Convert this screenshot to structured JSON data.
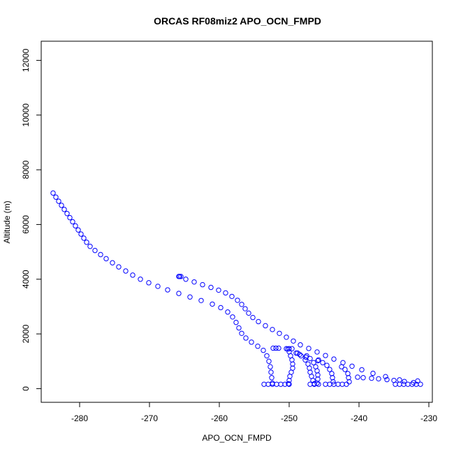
{
  "chart_data": {
    "type": "scatter",
    "title": "ORCAS RF08miz2 APO_OCN_FMPD",
    "xlabel": "APO_OCN_FMPD",
    "ylabel": "Altitude (m)",
    "xlim": [
      -285.5,
      -229.5
    ],
    "ylim": [
      -500,
      12700
    ],
    "xticks": [
      -280,
      -270,
      -260,
      -250,
      -240,
      -230
    ],
    "xtick_labels": [
      "-280",
      "-270",
      "-260",
      "-250",
      "-240",
      "-230"
    ],
    "yticks": [
      0,
      2000,
      4000,
      6000,
      8000,
      10000,
      12000
    ],
    "ytick_labels": [
      "0",
      "2000",
      "4000",
      "6000",
      "8000",
      "10000",
      "12000"
    ],
    "marker": "open-circle",
    "marker_color": "#0000ff",
    "grid": false,
    "legend": "none",
    "series": [
      {
        "points": [
          [
            -283.8,
            7150
          ],
          [
            -283.4,
            7000
          ],
          [
            -283.0,
            6850
          ],
          [
            -282.6,
            6700
          ],
          [
            -282.2,
            6550
          ],
          [
            -281.8,
            6400
          ],
          [
            -281.4,
            6250
          ],
          [
            -281.0,
            6100
          ],
          [
            -280.6,
            5950
          ],
          [
            -280.2,
            5800
          ],
          [
            -279.8,
            5650
          ],
          [
            -279.4,
            5500
          ],
          [
            -279.0,
            5350
          ],
          [
            -278.5,
            5200
          ],
          [
            -277.8,
            5050
          ],
          [
            -277.0,
            4900
          ],
          [
            -276.2,
            4750
          ],
          [
            -275.3,
            4600
          ],
          [
            -274.4,
            4450
          ],
          [
            -273.4,
            4300
          ],
          [
            -272.4,
            4150
          ],
          [
            -271.3,
            4000
          ],
          [
            -270.1,
            3870
          ],
          [
            -268.8,
            3740
          ],
          [
            -267.4,
            3610
          ],
          [
            -265.8,
            3480
          ],
          [
            -264.2,
            3350
          ],
          [
            -262.6,
            3220
          ],
          [
            -261.0,
            3090
          ],
          [
            -259.8,
            2960
          ],
          [
            -258.8,
            2800
          ],
          [
            -258.1,
            2620
          ],
          [
            -257.6,
            2420
          ],
          [
            -257.2,
            2220
          ],
          [
            -256.8,
            2020
          ],
          [
            -256.2,
            1850
          ],
          [
            -255.4,
            1700
          ],
          [
            -254.5,
            1550
          ],
          [
            -253.7,
            1400
          ],
          [
            -253.2,
            1200
          ],
          [
            -252.9,
            1000
          ],
          [
            -252.7,
            800
          ],
          [
            -252.6,
            600
          ],
          [
            -252.5,
            400
          ],
          [
            -252.4,
            200
          ]
        ]
      },
      {
        "points": [
          [
            -265.8,
            4100
          ],
          [
            -264.8,
            4000
          ],
          [
            -263.6,
            3900
          ],
          [
            -262.4,
            3800
          ],
          [
            -261.2,
            3700
          ],
          [
            -260.1,
            3600
          ],
          [
            -259.1,
            3500
          ],
          [
            -258.2,
            3370
          ],
          [
            -257.4,
            3230
          ],
          [
            -256.8,
            3080
          ],
          [
            -256.3,
            2920
          ],
          [
            -255.8,
            2760
          ],
          [
            -255.2,
            2600
          ],
          [
            -254.4,
            2450
          ],
          [
            -253.4,
            2300
          ],
          [
            -252.4,
            2160
          ],
          [
            -251.4,
            2020
          ],
          [
            -250.4,
            1880
          ],
          [
            -249.4,
            1740
          ],
          [
            -248.4,
            1600
          ],
          [
            -247.2,
            1470
          ],
          [
            -246.0,
            1340
          ],
          [
            -244.8,
            1210
          ],
          [
            -243.6,
            1080
          ],
          [
            -242.3,
            950
          ],
          [
            -241.0,
            820
          ],
          [
            -239.6,
            690
          ],
          [
            -238.0,
            560
          ],
          [
            -236.2,
            440
          ],
          [
            -234.2,
            320
          ],
          [
            -232.2,
            220
          ]
        ]
      },
      {
        "points": [
          [
            -250.2,
            1450
          ],
          [
            -250.0,
            1350
          ],
          [
            -249.8,
            1200
          ],
          [
            -249.6,
            1050
          ],
          [
            -249.5,
            900
          ],
          [
            -249.5,
            750
          ],
          [
            -249.7,
            600
          ],
          [
            -249.9,
            450
          ],
          [
            -250.0,
            300
          ],
          [
            -250.1,
            180
          ]
        ]
      },
      {
        "points": [
          [
            -249.0,
            1300
          ],
          [
            -248.3,
            1200
          ],
          [
            -247.7,
            1050
          ],
          [
            -247.3,
            900
          ],
          [
            -247.1,
            750
          ],
          [
            -247.0,
            600
          ],
          [
            -246.8,
            450
          ],
          [
            -246.6,
            300
          ],
          [
            -246.4,
            180
          ]
        ]
      },
      {
        "points": [
          [
            -247.5,
            1200
          ],
          [
            -247.0,
            1100
          ],
          [
            -246.5,
            950
          ],
          [
            -246.2,
            800
          ],
          [
            -246.0,
            650
          ],
          [
            -245.9,
            500
          ],
          [
            -245.9,
            350
          ],
          [
            -246.0,
            200
          ]
        ]
      },
      {
        "points": [
          [
            -245.8,
            1050
          ],
          [
            -245.2,
            950
          ],
          [
            -244.6,
            850
          ],
          [
            -244.2,
            700
          ],
          [
            -243.9,
            550
          ],
          [
            -243.8,
            400
          ],
          [
            -243.7,
            250
          ]
        ]
      },
      {
        "points": [
          [
            -242.5,
            800
          ],
          [
            -242.0,
            700
          ],
          [
            -241.6,
            550
          ],
          [
            -241.5,
            400
          ],
          [
            -241.4,
            250
          ]
        ]
      },
      {
        "points": [
          [
            -252.3,
            1480
          ],
          [
            -251.9,
            1480
          ],
          [
            -251.5,
            1480
          ],
          [
            -250.4,
            1460
          ],
          [
            -250.0,
            1460
          ],
          [
            -249.6,
            1460
          ],
          [
            -248.8,
            1300
          ],
          [
            -248.5,
            1250
          ],
          [
            -247.6,
            1150
          ],
          [
            -245.9,
            1020
          ],
          [
            -265.7,
            4100
          ],
          [
            -265.5,
            4100
          ]
        ]
      },
      {
        "points": [
          [
            -253.6,
            160
          ],
          [
            -253.0,
            160
          ],
          [
            -252.4,
            160
          ],
          [
            -251.8,
            160
          ],
          [
            -251.2,
            160
          ],
          [
            -250.6,
            160
          ],
          [
            -250.0,
            160
          ],
          [
            -247.0,
            160
          ],
          [
            -246.4,
            160
          ],
          [
            -245.8,
            160
          ],
          [
            -244.8,
            160
          ],
          [
            -244.2,
            160
          ],
          [
            -243.6,
            160
          ],
          [
            -243.0,
            160
          ],
          [
            -242.4,
            160
          ],
          [
            -241.8,
            160
          ],
          [
            -234.8,
            160
          ],
          [
            -234.2,
            160
          ],
          [
            -233.6,
            160
          ],
          [
            -233.0,
            160
          ],
          [
            -232.4,
            160
          ],
          [
            -231.8,
            160
          ],
          [
            -231.2,
            160
          ]
        ]
      },
      {
        "points": [
          [
            -240.2,
            420
          ],
          [
            -239.4,
            400
          ],
          [
            -238.2,
            380
          ],
          [
            -237.2,
            360
          ],
          [
            -236.0,
            330
          ],
          [
            -235.0,
            300
          ],
          [
            -233.5,
            260
          ],
          [
            -231.6,
            280
          ]
        ]
      }
    ]
  }
}
